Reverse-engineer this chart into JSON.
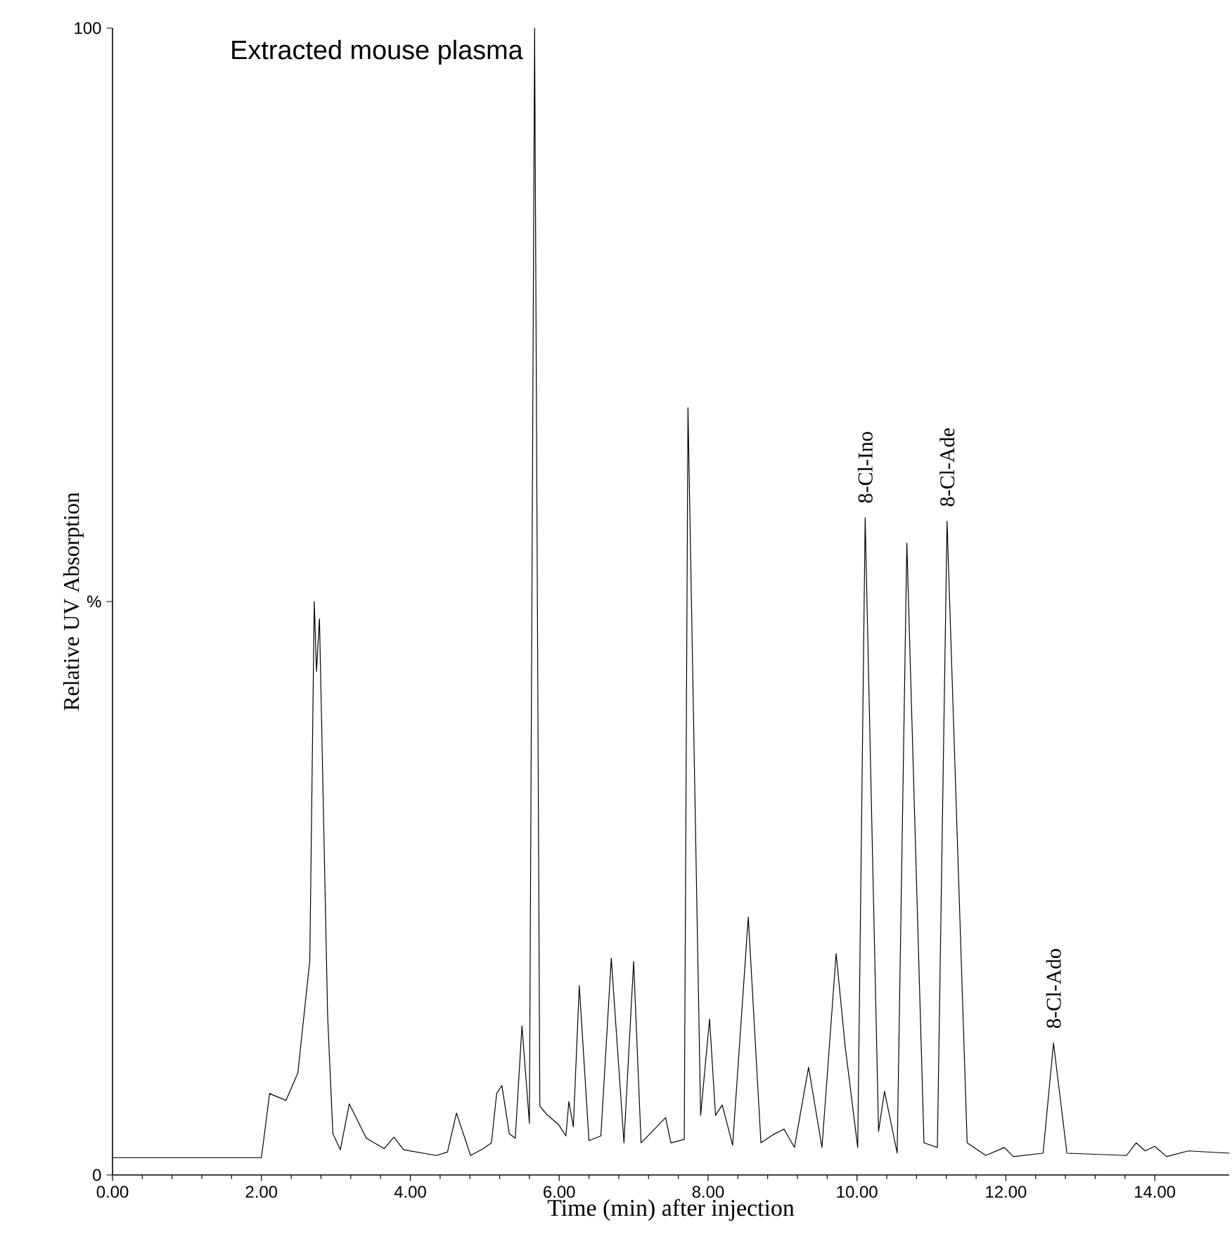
{
  "chart_data": {
    "type": "line",
    "title": "Extracted mouse plasma",
    "xlabel": "Time (min) after injection",
    "ylabel": "Relative UV Absorption",
    "xlim": [
      0,
      15
    ],
    "ylim": [
      0,
      100
    ],
    "xticks": [
      {
        "value": 0,
        "label": "0.00"
      },
      {
        "value": 2,
        "label": "2.00"
      },
      {
        "value": 4,
        "label": "4.00"
      },
      {
        "value": 6,
        "label": "6.00"
      },
      {
        "value": 8,
        "label": "8.00"
      },
      {
        "value": 10,
        "label": "10.00"
      },
      {
        "value": 12,
        "label": "12.00"
      },
      {
        "value": 14,
        "label": "14.00"
      }
    ],
    "yticks": [
      0,
      {
        "value": 50,
        "label": "%"
      },
      100
    ],
    "series": [
      {
        "color": "#000000",
        "x": [
          0,
          2.0,
          2.11,
          2.33,
          2.49,
          2.65,
          2.71,
          2.74,
          2.78,
          2.89,
          2.96,
          3.06,
          3.18,
          3.41,
          3.65,
          3.78,
          3.91,
          4.35,
          4.5,
          4.62,
          4.81,
          4.98,
          5.09,
          5.16,
          5.23,
          5.33,
          5.41,
          5.5,
          5.6,
          5.67,
          5.74,
          5.83,
          5.99,
          6.09,
          6.13,
          6.19,
          6.27,
          6.4,
          6.56,
          6.7,
          6.87,
          7.0,
          7.1,
          7.43,
          7.5,
          7.68,
          7.73,
          7.9,
          8.02,
          8.1,
          8.19,
          8.33,
          8.54,
          8.71,
          8.87,
          9.02,
          9.16,
          9.35,
          9.53,
          9.72,
          9.84,
          10.01,
          10.11,
          10.29,
          10.37,
          10.54,
          10.67,
          10.9,
          11.08,
          11.21,
          11.48,
          11.73,
          11.98,
          12.1,
          12.5,
          12.64,
          12.82,
          13.62,
          13.75,
          13.87,
          14.0,
          14.16,
          14.45,
          15.0
        ],
        "values": [
          1.5,
          1.5,
          7.1,
          6.5,
          8.9,
          18.7,
          50.0,
          43.9,
          48.5,
          13.8,
          3.6,
          2.2,
          6.2,
          3.2,
          2.3,
          3.3,
          2.2,
          1.7,
          2.0,
          5.4,
          1.7,
          2.3,
          2.8,
          7.1,
          7.8,
          3.6,
          3.2,
          13.0,
          4.5,
          100,
          6.0,
          5.3,
          4.4,
          3.4,
          6.4,
          4.2,
          16.5,
          3.0,
          3.4,
          18.9,
          2.8,
          18.6,
          2.8,
          5.0,
          2.8,
          3.1,
          66.9,
          5.2,
          13.6,
          5.2,
          6.1,
          2.6,
          22.5,
          2.8,
          3.5,
          4.0,
          2.4,
          9.4,
          2.4,
          19.3,
          11.3,
          2.4,
          57.3,
          3.8,
          7.3,
          1.9,
          55.1,
          2.8,
          2.4,
          57.0,
          2.8,
          1.7,
          2.4,
          1.6,
          1.9,
          11.5,
          1.9,
          1.7,
          2.8,
          2.1,
          2.5,
          1.6,
          2.1,
          1.9
        ]
      }
    ],
    "annotations": [
      {
        "text": "8-Cl-Ino",
        "x": 10.11,
        "y": 57.3
      },
      {
        "text": "8-Cl-Ade",
        "x": 11.21,
        "y": 57.0
      },
      {
        "text": "8-Cl-Ado",
        "x": 12.64,
        "y": 11.5
      }
    ]
  }
}
